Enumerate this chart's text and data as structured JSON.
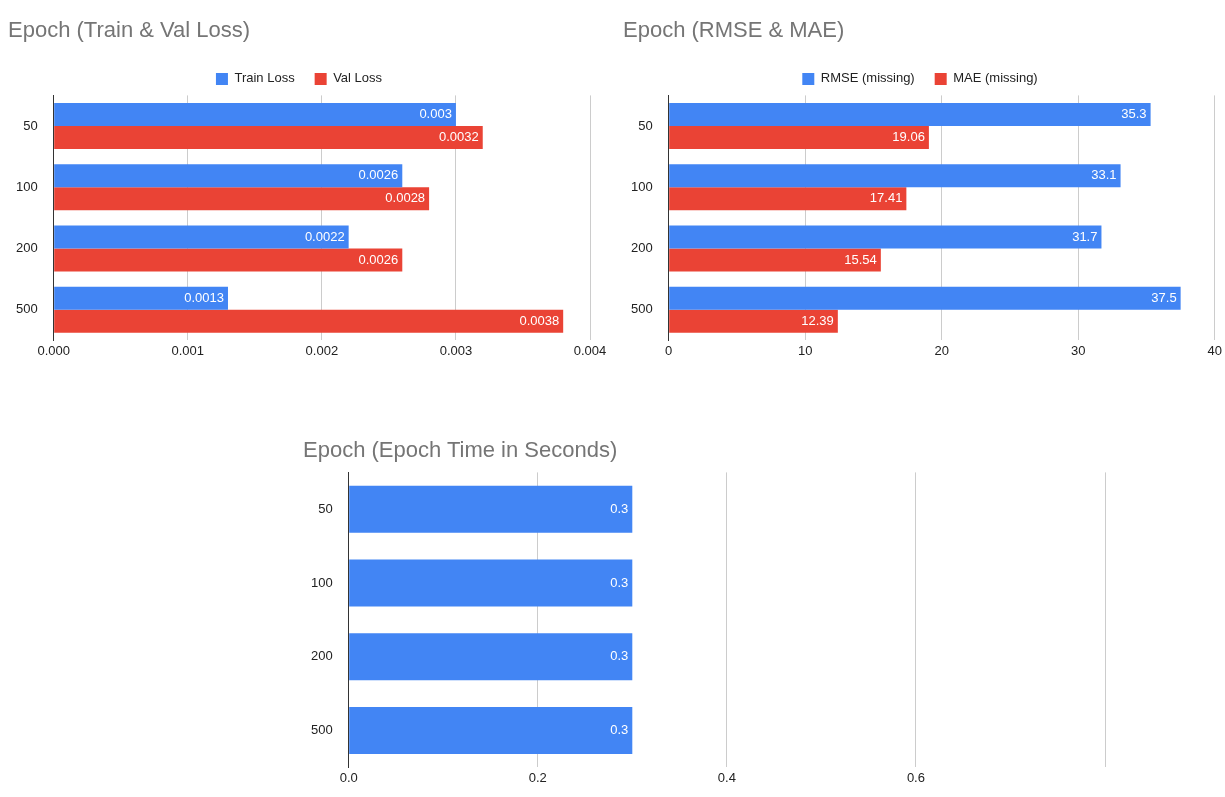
{
  "chart_data": [
    {
      "type": "bar",
      "orientation": "horizontal",
      "title": "Epoch (Train & Val Loss)",
      "categories": [
        "50",
        "100",
        "200",
        "500"
      ],
      "series": [
        {
          "name": "Train Loss",
          "color": "#4285f4",
          "values": [
            0.003,
            0.0026,
            0.0022,
            0.0013
          ]
        },
        {
          "name": "Val Loss",
          "color": "#ea4335",
          "values": [
            0.0032,
            0.0028,
            0.0026,
            0.0038
          ]
        }
      ],
      "xlim": [
        0,
        0.004
      ],
      "xticks": [
        {
          "value": 0,
          "label": "0.000"
        },
        {
          "value": 0.001,
          "label": "0.001"
        },
        {
          "value": 0.002,
          "label": "0.002"
        },
        {
          "value": 0.003,
          "label": "0.003"
        },
        {
          "value": 0.004,
          "label": "0.004"
        }
      ],
      "grid": "x",
      "legend": "top",
      "data_labels": true
    },
    {
      "type": "bar",
      "orientation": "horizontal",
      "title": "Epoch (RMSE & MAE)",
      "categories": [
        "50",
        "100",
        "200",
        "500"
      ],
      "series": [
        {
          "name": "RMSE (missing)",
          "color": "#4285f4",
          "values": [
            35.3,
            33.1,
            31.7,
            37.5
          ]
        },
        {
          "name": "MAE (missing)",
          "color": "#ea4335",
          "values": [
            19.06,
            17.41,
            15.54,
            12.39
          ]
        }
      ],
      "xlim": [
        0,
        40
      ],
      "xticks": [
        0,
        10,
        20,
        30,
        40
      ],
      "grid": "x",
      "legend": "top",
      "data_labels": true
    },
    {
      "type": "bar",
      "orientation": "horizontal",
      "title": "Epoch (Epoch Time in Seconds)",
      "categories": [
        "50",
        "100",
        "200",
        "500"
      ],
      "series": [
        {
          "color": "#4285f4",
          "values": [
            0.3,
            0.3,
            0.3,
            0.3
          ]
        }
      ],
      "xlim": [
        0,
        0.8
      ],
      "xticks": [
        {
          "value": 0,
          "label": "0.0"
        },
        {
          "value": 0.2,
          "label": "0.2"
        },
        {
          "value": 0.4,
          "label": "0.4"
        },
        {
          "value": 0.6,
          "label": "0.6"
        },
        {
          "value": 0.8,
          "label": null
        }
      ],
      "grid": "x",
      "data_labels": true
    }
  ]
}
